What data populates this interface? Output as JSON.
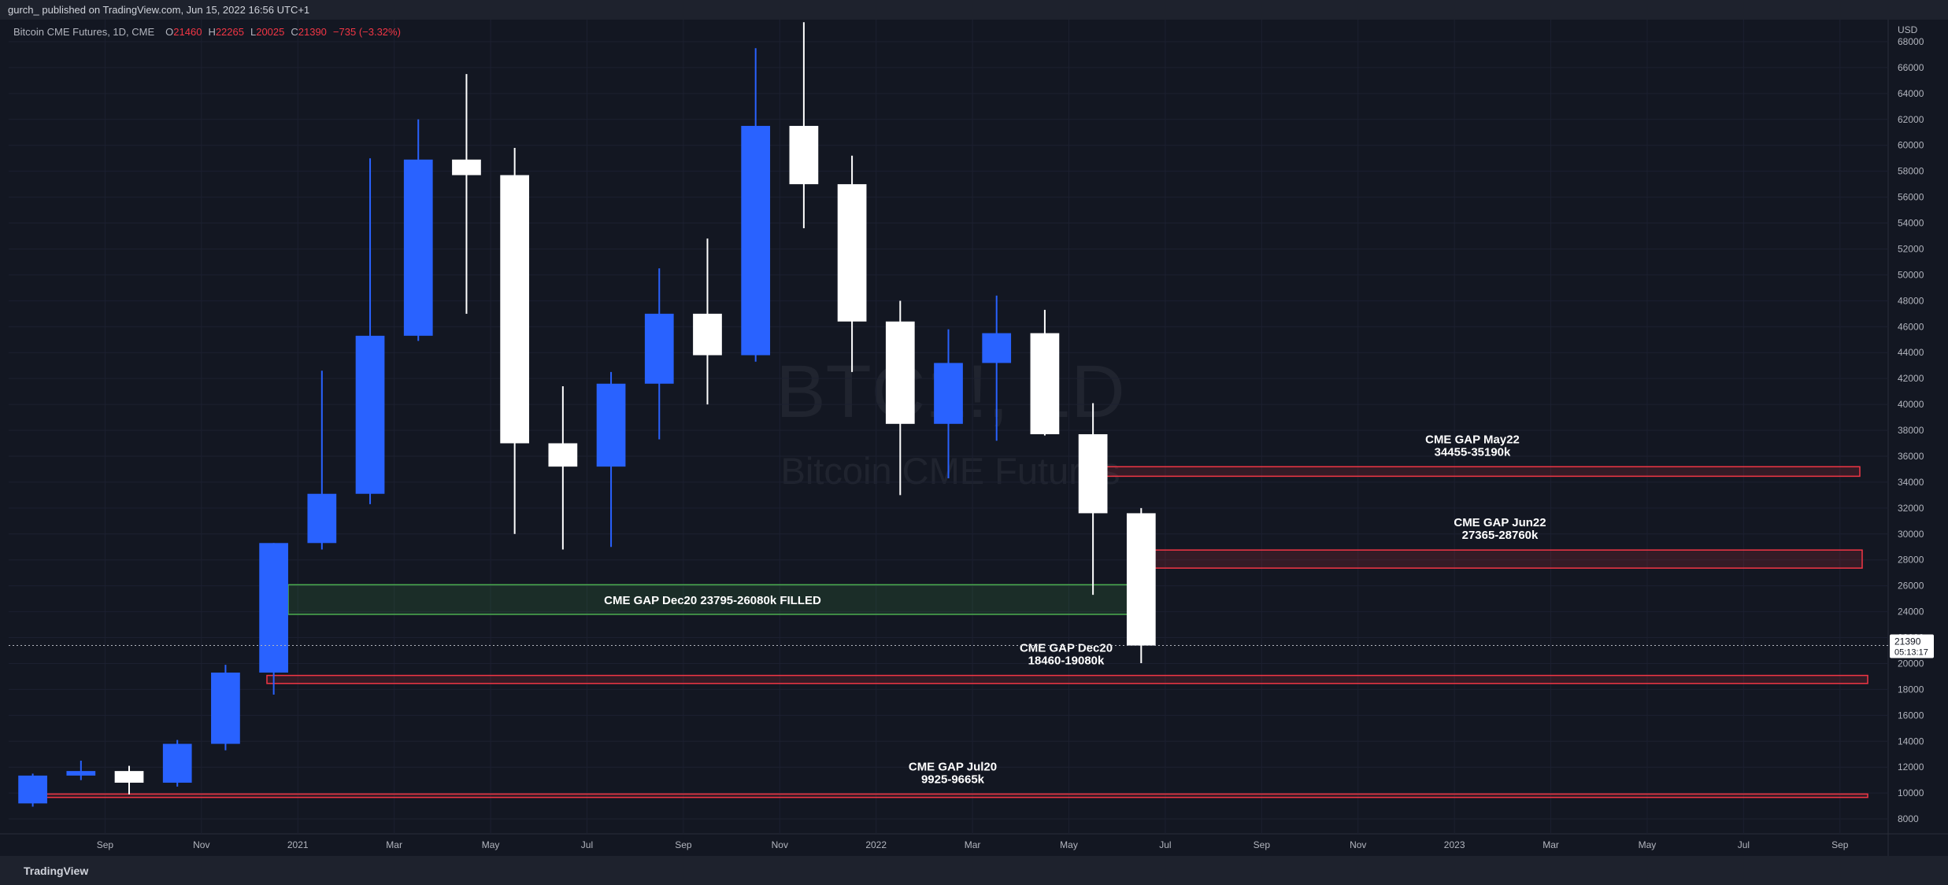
{
  "header": {
    "text": "gurch_ published on TradingView.com, Jun 15, 2022 16:56 UTC+1"
  },
  "footer": {
    "brand": "TradingView"
  },
  "chart_data": {
    "type": "candlestick",
    "legend": {
      "symbol": "Bitcoin CME Futures, 1D, CME",
      "ohlc": [
        {
          "key": "O",
          "value": 21460
        },
        {
          "key": "H",
          "value": 22265
        },
        {
          "key": "L",
          "value": 20025
        },
        {
          "key": "C",
          "value": 21390
        }
      ],
      "change_label": "−735 (−3.32%)"
    },
    "watermark": {
      "symbol": "BTC1!, 1D",
      "name": "Bitcoin CME Futures"
    },
    "y_unit": "USD",
    "countdown": "05:13:17",
    "x": [
      "2020-07",
      "2020-08",
      "2020-09",
      "2020-10",
      "2020-11",
      "2020-12",
      "2021-01",
      "2021-02",
      "2021-03",
      "2021-04",
      "2021-05",
      "2021-06",
      "2021-07",
      "2021-08",
      "2021-09",
      "2021-10",
      "2021-11",
      "2021-12",
      "2022-01",
      "2022-02",
      "2022-03",
      "2022-04",
      "2022-05",
      "2022-06"
    ],
    "open": [
      9200,
      11350,
      11700,
      10800,
      13800,
      19300,
      29300,
      33100,
      45300,
      58900,
      57700,
      37000,
      35200,
      41600,
      47000,
      43800,
      61500,
      57000,
      46400,
      38500,
      43200,
      45500,
      37700,
      31600
    ],
    "high": [
      11500,
      12500,
      12100,
      14100,
      19900,
      29300,
      42600,
      59000,
      62000,
      65500,
      59800,
      41400,
      42500,
      50500,
      52800,
      67500,
      69500,
      59200,
      48000,
      45800,
      48400,
      47300,
      40100,
      32000
    ],
    "low": [
      8950,
      11000,
      9900,
      10500,
      13300,
      17600,
      28800,
      32300,
      44900,
      47000,
      30000,
      28800,
      29000,
      37300,
      40000,
      43300,
      53600,
      42500,
      33000,
      34300,
      37200,
      37600,
      25300,
      20025
    ],
    "close": [
      11350,
      11700,
      10800,
      13800,
      19300,
      29300,
      33100,
      45300,
      58900,
      57700,
      37000,
      35200,
      41600,
      47000,
      43800,
      61500,
      57000,
      46400,
      38500,
      43200,
      45500,
      37700,
      31600,
      21390
    ],
    "up_color": "#2962ff",
    "down_color": "#ffffff",
    "xlim": [
      "2020-07",
      "2023-10"
    ],
    "xticks": [
      {
        "value": "2020-09",
        "label": "Sep"
      },
      {
        "value": "2020-11",
        "label": "Nov"
      },
      {
        "value": "2021-01",
        "label": "2021"
      },
      {
        "value": "2021-03",
        "label": "Mar"
      },
      {
        "value": "2021-05",
        "label": "May"
      },
      {
        "value": "2021-07",
        "label": "Jul"
      },
      {
        "value": "2021-09",
        "label": "Sep"
      },
      {
        "value": "2021-11",
        "label": "Nov"
      },
      {
        "value": "2022-01",
        "label": "2022"
      },
      {
        "value": "2022-03",
        "label": "Mar"
      },
      {
        "value": "2022-05",
        "label": "May"
      },
      {
        "value": "2022-07",
        "label": "Jul"
      },
      {
        "value": "2022-09",
        "label": "Sep"
      },
      {
        "value": "2022-11",
        "label": "Nov"
      },
      {
        "value": "2023-01",
        "label": "2023"
      },
      {
        "value": "2023-03",
        "label": "Mar"
      },
      {
        "value": "2023-05",
        "label": "May"
      },
      {
        "value": "2023-07",
        "label": "Jul"
      },
      {
        "value": "2023-09",
        "label": "Sep"
      }
    ],
    "ylim": [
      6850,
      69700
    ],
    "yticks": [
      8000,
      10000,
      12000,
      14000,
      16000,
      18000,
      20000,
      22000,
      24000,
      26000,
      28000,
      30000,
      32000,
      34000,
      36000,
      38000,
      40000,
      42000,
      44000,
      46000,
      48000,
      50000,
      52000,
      54000,
      56000,
      58000,
      60000,
      62000,
      64000,
      66000,
      68000
    ],
    "grid": true,
    "zones": [
      {
        "label_lines": [
          "CME GAP Dec20 23795-26080k FILLED"
        ],
        "low": 23795,
        "high": 26080,
        "color": "#4caf50"
      },
      {
        "label_lines": [
          "CME GAP May22",
          "34455-35190k"
        ],
        "low": 34455,
        "high": 35190,
        "color": "#f23645"
      },
      {
        "label_lines": [
          "CME GAP Jun22",
          "27365-28760k"
        ],
        "low": 27365,
        "high": 28760,
        "color": "#f23645"
      },
      {
        "label_lines": [
          "CME GAP Dec20",
          "18460-19080k"
        ],
        "low": 18460,
        "high": 19080,
        "color": "#f23645"
      },
      {
        "label_lines": [
          "CME GAP Jul20",
          "9925-9665k"
        ],
        "low": 9665,
        "high": 9925,
        "color": "#f23645"
      }
    ]
  }
}
